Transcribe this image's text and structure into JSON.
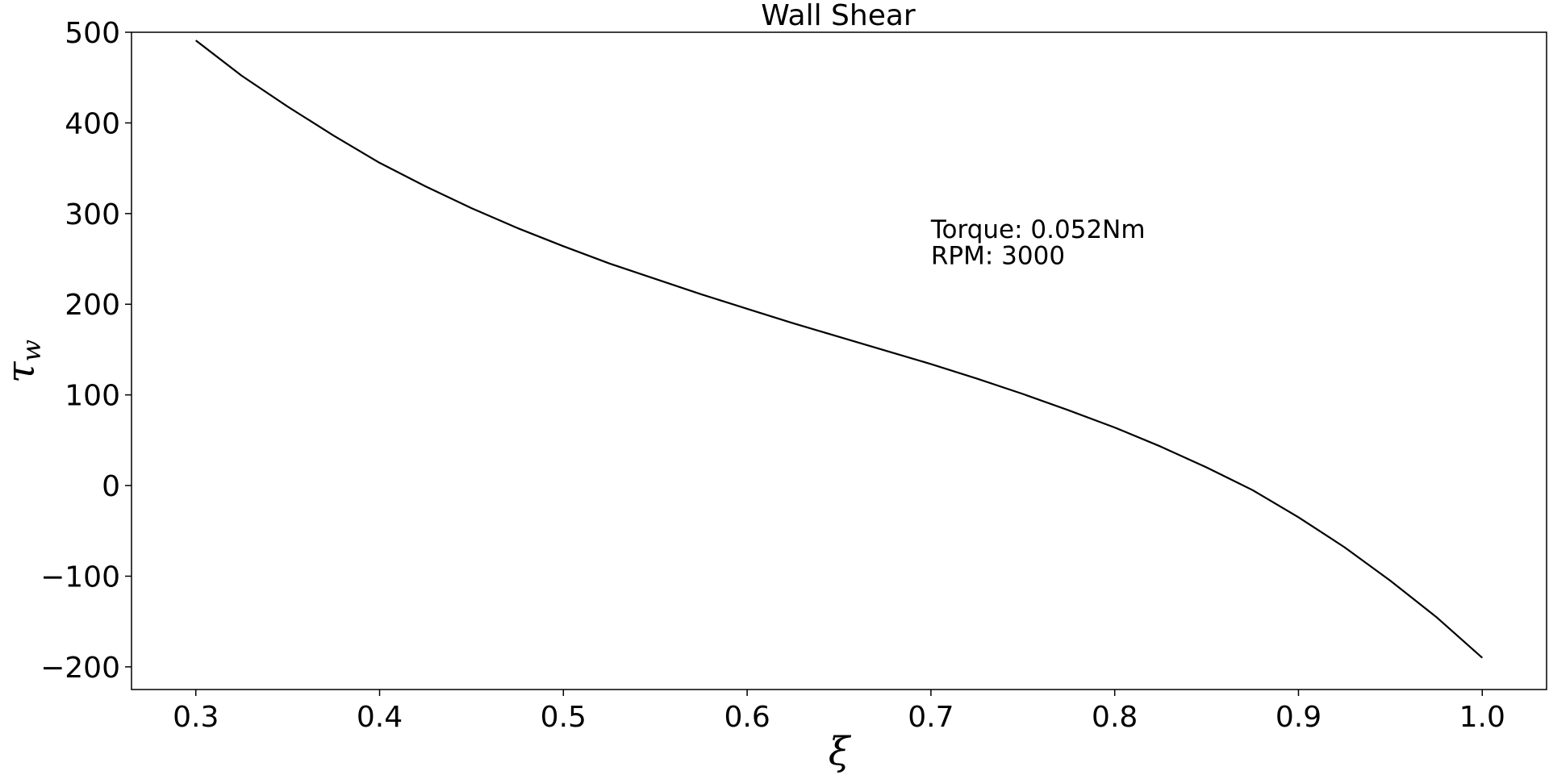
{
  "chart_data": {
    "type": "line",
    "title": "Wall Shear",
    "xlabel": "ξ",
    "ylabel_symbol": "τ",
    "ylabel_subscript": "w",
    "xlim": [
      0.265,
      1.035
    ],
    "ylim": [
      -225,
      500
    ],
    "xticks": [
      0.3,
      0.4,
      0.5,
      0.6,
      0.7,
      0.8,
      0.9,
      1.0
    ],
    "xtick_labels": [
      "0.3",
      "0.4",
      "0.5",
      "0.6",
      "0.7",
      "0.8",
      "0.9",
      "1.0"
    ],
    "yticks": [
      500,
      400,
      300,
      200,
      100,
      0,
      -100,
      -200
    ],
    "ytick_labels": [
      "500",
      "400",
      "300",
      "200",
      "100",
      "0",
      "−100",
      "−200"
    ],
    "grid": false,
    "annotations": [
      {
        "text": "Torque: 0.052Nm",
        "x": 0.7,
        "y": 283
      },
      {
        "text": "RPM: 3000",
        "x": 0.7,
        "y": 254
      }
    ],
    "series": [
      {
        "color": "#000000",
        "x": [
          0.3,
          0.325,
          0.35,
          0.375,
          0.4,
          0.425,
          0.45,
          0.475,
          0.5,
          0.525,
          0.55,
          0.575,
          0.6,
          0.625,
          0.65,
          0.675,
          0.7,
          0.725,
          0.75,
          0.775,
          0.8,
          0.825,
          0.85,
          0.875,
          0.9,
          0.925,
          0.95,
          0.975,
          1.0
        ],
        "y": [
          491,
          452,
          418,
          386,
          356,
          330,
          306,
          284,
          264,
          245,
          228,
          211,
          195,
          179,
          164,
          149,
          134,
          118,
          101,
          83,
          64,
          43,
          20,
          -5,
          -35,
          -68,
          -105,
          -145,
          -190
        ]
      }
    ]
  }
}
